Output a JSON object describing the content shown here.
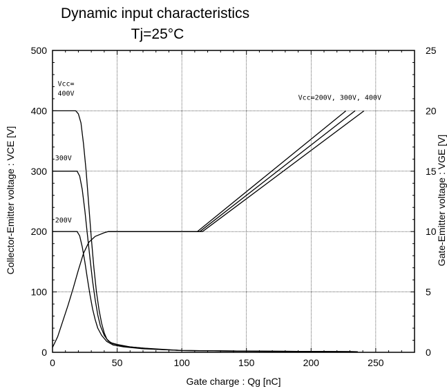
{
  "chart_data": {
    "type": "line",
    "title": "Dynamic  input  characteristics",
    "subtitle": "Tj=25°C",
    "xlabel": "Gate  charge  :  Qg  [nC]",
    "ylabel_left": "Collector-Emitter  voltage  :  VCE  [V]",
    "ylabel_right": "Gate-Emitter  voltage  :  VGE  [V]",
    "xlim": [
      0,
      280
    ],
    "ylim_left": [
      0,
      500
    ],
    "ylim_right": [
      0,
      25
    ],
    "x_ticks": [
      0,
      50,
      100,
      150,
      200,
      250
    ],
    "y_left_ticks": [
      0,
      100,
      200,
      300,
      400,
      500
    ],
    "y_right_ticks": [
      0,
      5,
      10,
      15,
      20,
      25
    ],
    "grid": true,
    "annotations": [
      {
        "text": "Vcc=",
        "x": 4,
        "y": 441
      },
      {
        "text": "400V",
        "x": 4,
        "y": 425
      },
      {
        "text": "300V",
        "x": 2,
        "y": 318
      },
      {
        "text": "200V",
        "x": 2,
        "y": 215
      },
      {
        "text": "Vcc=200V, 300V, 400V",
        "x": 190,
        "y": 418
      }
    ],
    "series": [
      {
        "axis": "left",
        "points": [
          [
            0,
            400
          ],
          [
            18,
            400
          ],
          [
            20,
            395
          ],
          [
            22,
            380
          ],
          [
            24,
            345
          ],
          [
            26,
            300
          ],
          [
            28,
            245
          ],
          [
            30,
            190
          ],
          [
            32,
            140
          ],
          [
            34,
            100
          ],
          [
            36,
            70
          ],
          [
            38,
            48
          ],
          [
            40,
            32
          ],
          [
            42,
            22
          ],
          [
            45,
            16
          ],
          [
            50,
            13
          ],
          [
            60,
            9
          ],
          [
            80,
            5
          ],
          [
            100,
            3
          ],
          [
            150,
            2
          ],
          [
            236,
            1
          ]
        ]
      },
      {
        "axis": "left",
        "points": [
          [
            0,
            300
          ],
          [
            19,
            300
          ],
          [
            21,
            292
          ],
          [
            23,
            270
          ],
          [
            25,
            235
          ],
          [
            27,
            195
          ],
          [
            29,
            155
          ],
          [
            31,
            118
          ],
          [
            33,
            87
          ],
          [
            35,
            62
          ],
          [
            37,
            44
          ],
          [
            40,
            28
          ],
          [
            43,
            19
          ],
          [
            47,
            14
          ],
          [
            55,
            10
          ],
          [
            70,
            7
          ],
          [
            100,
            3
          ],
          [
            150,
            2
          ],
          [
            236,
            1
          ]
        ]
      },
      {
        "axis": "left",
        "points": [
          [
            0,
            200
          ],
          [
            19,
            200
          ],
          [
            21,
            193
          ],
          [
            23,
            175
          ],
          [
            25,
            150
          ],
          [
            27,
            122
          ],
          [
            29,
            95
          ],
          [
            31,
            72
          ],
          [
            33,
            54
          ],
          [
            35,
            40
          ],
          [
            38,
            28
          ],
          [
            42,
            18
          ],
          [
            47,
            12
          ],
          [
            55,
            9
          ],
          [
            70,
            6
          ],
          [
            100,
            3
          ],
          [
            150,
            2
          ],
          [
            236,
            1
          ]
        ]
      },
      {
        "axis": "right",
        "points": [
          [
            0,
            0.4
          ],
          [
            4,
            1.3
          ],
          [
            8,
            2.6
          ],
          [
            12,
            3.9
          ],
          [
            16,
            5.3
          ],
          [
            20,
            6.8
          ],
          [
            24,
            8.2
          ],
          [
            28,
            9.1
          ],
          [
            33,
            9.6
          ],
          [
            40,
            9.9
          ],
          [
            43,
            10
          ],
          [
            112,
            10
          ],
          [
            227,
            20
          ]
        ]
      },
      {
        "axis": "right",
        "points": [
          [
            43,
            10
          ],
          [
            114,
            10
          ],
          [
            234,
            20
          ]
        ]
      },
      {
        "axis": "right",
        "points": [
          [
            43,
            10
          ],
          [
            116,
            10
          ],
          [
            241,
            20
          ]
        ]
      }
    ]
  }
}
